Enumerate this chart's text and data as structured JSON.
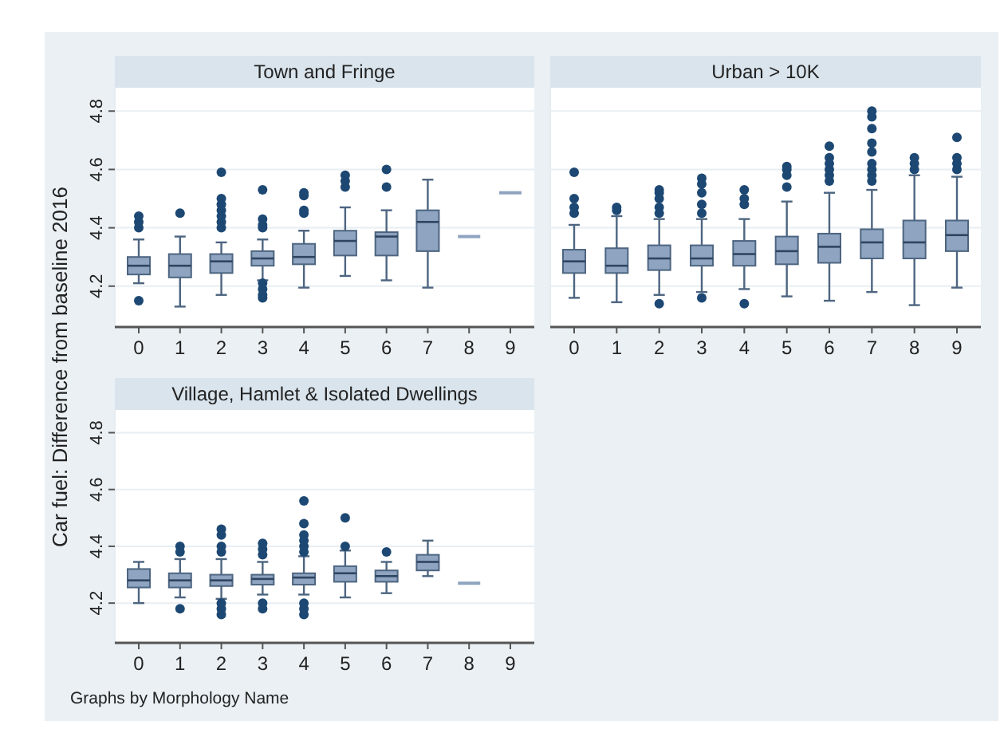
{
  "chart_data": [
    {
      "type": "box",
      "title": "Town and Fringe",
      "ylabel": "Car fuel: Difference from baseline 2016",
      "categories": [
        "0",
        "1",
        "2",
        "3",
        "4",
        "5",
        "6",
        "7",
        "8",
        "9"
      ],
      "ylim": [
        4.06,
        4.88
      ],
      "yticks": [
        4.2,
        4.4,
        4.6,
        4.8
      ],
      "grid": "y",
      "color": "#8ea4c0",
      "boxes": [
        {
          "low": 4.21,
          "q1": 4.24,
          "median": 4.27,
          "q3": 4.3,
          "high": 4.36,
          "outliers": [
            4.15,
            4.4,
            4.42,
            4.44
          ]
        },
        {
          "low": 4.13,
          "q1": 4.23,
          "median": 4.27,
          "q3": 4.31,
          "high": 4.37,
          "outliers": [
            4.45
          ]
        },
        {
          "low": 4.17,
          "q1": 4.245,
          "median": 4.285,
          "q3": 4.31,
          "high": 4.35,
          "outliers": [
            4.4,
            4.42,
            4.44,
            4.46,
            4.48,
            4.5,
            4.59
          ]
        },
        {
          "low": 4.22,
          "q1": 4.27,
          "median": 4.295,
          "q3": 4.32,
          "high": 4.36,
          "outliers": [
            4.16,
            4.17,
            4.19,
            4.21,
            4.4,
            4.41,
            4.43,
            4.53
          ]
        },
        {
          "low": 4.195,
          "q1": 4.275,
          "median": 4.3,
          "q3": 4.345,
          "high": 4.39,
          "outliers": [
            4.45,
            4.46,
            4.51,
            4.52
          ]
        },
        {
          "low": 4.235,
          "q1": 4.305,
          "median": 4.355,
          "q3": 4.39,
          "high": 4.47,
          "outliers": [
            4.54,
            4.56,
            4.58
          ]
        },
        {
          "low": 4.22,
          "q1": 4.305,
          "median": 4.37,
          "q3": 4.385,
          "high": 4.46,
          "outliers": [
            4.54,
            4.6
          ]
        },
        {
          "low": 4.195,
          "q1": 4.32,
          "median": 4.42,
          "q3": 4.46,
          "high": 4.565
        },
        {
          "low": 4.37,
          "q1": 4.37,
          "median": 4.37,
          "q3": 4.37,
          "high": 4.37
        },
        {
          "low": 4.52,
          "q1": 4.52,
          "median": 4.52,
          "q3": 4.52,
          "high": 4.52
        }
      ]
    },
    {
      "type": "box",
      "title": "Urban > 10K",
      "categories": [
        "0",
        "1",
        "2",
        "3",
        "4",
        "5",
        "6",
        "7",
        "8",
        "9"
      ],
      "ylim": [
        4.06,
        4.88
      ],
      "yticks": [
        4.2,
        4.4,
        4.6,
        4.8
      ],
      "tick_labels": "x",
      "grid": "y",
      "color": "#8ea4c0",
      "boxes": [
        {
          "low": 4.16,
          "q1": 4.245,
          "median": 4.285,
          "q3": 4.325,
          "high": 4.41,
          "outliers": [
            4.45,
            4.47,
            4.5,
            4.59
          ]
        },
        {
          "low": 4.145,
          "q1": 4.245,
          "median": 4.27,
          "q3": 4.33,
          "high": 4.44,
          "outliers": [
            4.46,
            4.47
          ]
        },
        {
          "low": 4.17,
          "q1": 4.255,
          "median": 4.295,
          "q3": 4.34,
          "high": 4.43,
          "outliers": [
            4.14,
            4.45,
            4.47,
            4.5,
            4.52,
            4.53
          ]
        },
        {
          "low": 4.18,
          "q1": 4.27,
          "median": 4.295,
          "q3": 4.34,
          "high": 4.43,
          "outliers": [
            4.16,
            4.45,
            4.48,
            4.52,
            4.55,
            4.57
          ]
        },
        {
          "low": 4.19,
          "q1": 4.27,
          "median": 4.31,
          "q3": 4.355,
          "high": 4.43,
          "outliers": [
            4.14,
            4.48,
            4.5,
            4.53
          ]
        },
        {
          "low": 4.165,
          "q1": 4.275,
          "median": 4.32,
          "q3": 4.37,
          "high": 4.49,
          "outliers": [
            4.54,
            4.58,
            4.6,
            4.61
          ]
        },
        {
          "low": 4.15,
          "q1": 4.28,
          "median": 4.335,
          "q3": 4.38,
          "high": 4.52,
          "outliers": [
            4.56,
            4.58,
            4.6,
            4.62,
            4.64,
            4.68
          ]
        },
        {
          "low": 4.18,
          "q1": 4.295,
          "median": 4.35,
          "q3": 4.395,
          "high": 4.53,
          "outliers": [
            4.56,
            4.58,
            4.6,
            4.62,
            4.66,
            4.69,
            4.74,
            4.78,
            4.8
          ]
        },
        {
          "low": 4.135,
          "q1": 4.295,
          "median": 4.35,
          "q3": 4.425,
          "high": 4.58,
          "outliers": [
            4.6,
            4.62,
            4.64
          ]
        },
        {
          "low": 4.195,
          "q1": 4.32,
          "median": 4.375,
          "q3": 4.425,
          "high": 4.575,
          "outliers": [
            4.6,
            4.62,
            4.64,
            4.71
          ]
        }
      ]
    },
    {
      "type": "box",
      "title": "Village, Hamlet & Isolated Dwellings",
      "categories": [
        "0",
        "1",
        "2",
        "3",
        "4",
        "5",
        "6",
        "7",
        "8",
        "9"
      ],
      "ylim": [
        4.06,
        4.88
      ],
      "yticks": [
        4.2,
        4.4,
        4.6,
        4.8
      ],
      "grid": "y",
      "color": "#8ea4c0",
      "annotations": [
        "Graphs by Morphology Name"
      ],
      "boxes": [
        {
          "low": 4.2,
          "q1": 4.255,
          "median": 4.28,
          "q3": 4.32,
          "high": 4.345
        },
        {
          "low": 4.22,
          "q1": 4.255,
          "median": 4.28,
          "q3": 4.305,
          "high": 4.355,
          "outliers": [
            4.18,
            4.38,
            4.4
          ]
        },
        {
          "low": 4.215,
          "q1": 4.26,
          "median": 4.28,
          "q3": 4.3,
          "high": 4.355,
          "outliers": [
            4.16,
            4.18,
            4.2,
            4.38,
            4.4,
            4.44,
            4.46
          ]
        },
        {
          "low": 4.23,
          "q1": 4.265,
          "median": 4.285,
          "q3": 4.3,
          "high": 4.345,
          "outliers": [
            4.18,
            4.2,
            4.37,
            4.39,
            4.41
          ]
        },
        {
          "low": 4.23,
          "q1": 4.265,
          "median": 4.29,
          "q3": 4.305,
          "high": 4.365,
          "outliers": [
            4.16,
            4.18,
            4.2,
            4.38,
            4.4,
            4.42,
            4.44,
            4.48,
            4.56
          ]
        },
        {
          "low": 4.22,
          "q1": 4.275,
          "median": 4.305,
          "q3": 4.33,
          "high": 4.385,
          "outliers": [
            4.4,
            4.5
          ]
        },
        {
          "low": 4.235,
          "q1": 4.275,
          "median": 4.295,
          "q3": 4.315,
          "high": 4.345,
          "outliers": [
            4.38
          ]
        },
        {
          "low": 4.295,
          "q1": 4.315,
          "median": 4.345,
          "q3": 4.37,
          "high": 4.42
        },
        {
          "low": 4.27,
          "q1": 4.27,
          "median": 4.27,
          "q3": 4.27,
          "high": 4.27
        },
        null
      ]
    }
  ]
}
